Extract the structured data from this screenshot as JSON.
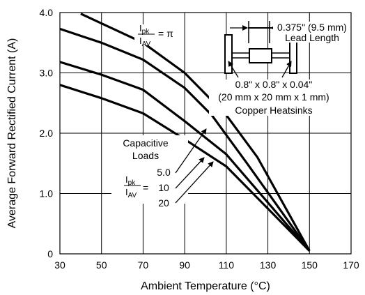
{
  "chart_data": {
    "type": "line",
    "title": "",
    "xlabel": "Ambient Temperature (°C)",
    "ylabel": "Average Forward Rectified Current (A)",
    "xlim": [
      30,
      170
    ],
    "ylim": [
      0,
      4.0
    ],
    "xticks": [
      "30",
      "50",
      "70",
      "90",
      "110",
      "130",
      "150",
      "170"
    ],
    "yticks": [
      "0",
      "1.0",
      "2.0",
      "3.0",
      "4.0"
    ],
    "grid": true,
    "series": [
      {
        "name": "π",
        "points": [
          [
            40,
            3.98
          ],
          [
            70,
            3.5
          ],
          [
            90,
            3.0
          ],
          [
            110,
            2.3
          ],
          [
            125,
            1.6
          ],
          [
            150,
            0.05
          ]
        ]
      },
      {
        "name": "5.0",
        "points": [
          [
            30,
            3.73
          ],
          [
            50,
            3.5
          ],
          [
            70,
            3.22
          ],
          [
            90,
            2.75
          ],
          [
            103,
            2.3
          ],
          [
            120,
            1.5
          ],
          [
            150,
            0.05
          ]
        ]
      },
      {
        "name": "10",
        "points": [
          [
            30,
            3.18
          ],
          [
            50,
            2.97
          ],
          [
            70,
            2.72
          ],
          [
            90,
            2.2
          ],
          [
            110,
            1.65
          ],
          [
            150,
            0.05
          ]
        ]
      },
      {
        "name": "20",
        "points": [
          [
            30,
            2.8
          ],
          [
            50,
            2.58
          ],
          [
            70,
            2.33
          ],
          [
            90,
            1.9
          ],
          [
            110,
            1.45
          ],
          [
            150,
            0.05
          ]
        ]
      }
    ]
  },
  "annotations": {
    "ratio_num": "I",
    "ratio_num_sub": "pk",
    "ratio_den": "I",
    "ratio_den_sub": "AV",
    "pi_value": "= π",
    "eq_sign": "=",
    "lead_length_value": "0.375\" (9.5 mm)",
    "lead_length_label": "Lead Length",
    "heatsink_line1": "0.8\" x 0.8\" x 0.04\"",
    "heatsink_line2": "(20 mm x 20 mm x 1 mm)",
    "heatsink_line3": "Copper Heatsinks",
    "capacitive_line1": "Capacitive",
    "capacitive_line2": "Loads",
    "load_5": "5.0",
    "load_10": "10",
    "load_20": "20"
  }
}
